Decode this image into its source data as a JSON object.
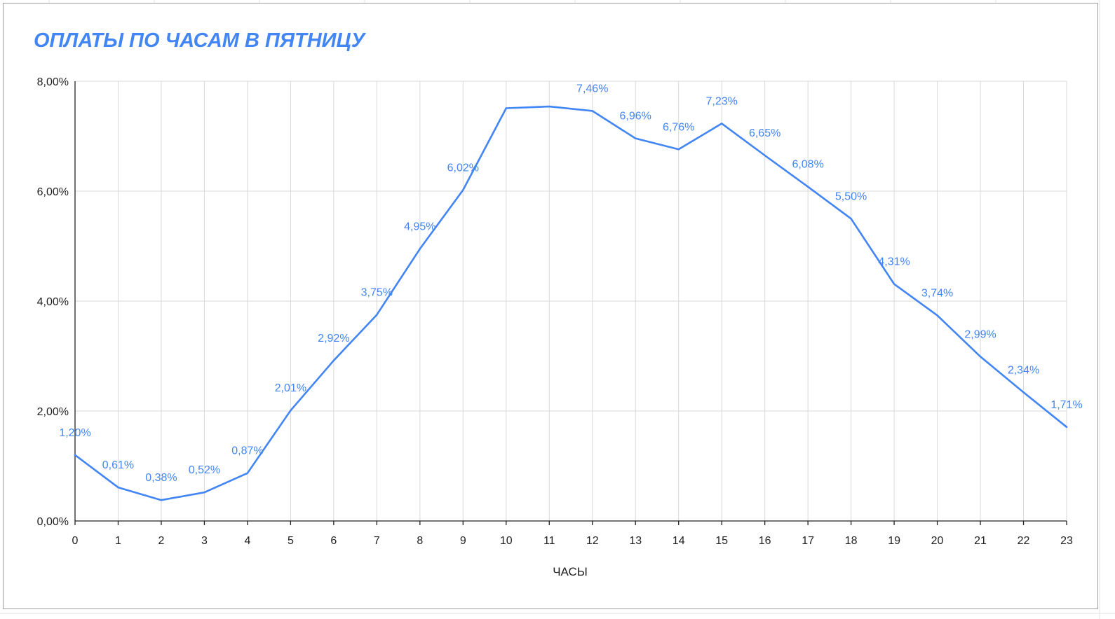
{
  "chart_data": {
    "type": "line",
    "title": "ОПЛАТЫ ПО ЧАСАМ В ПЯТНИЦУ",
    "xlabel": "ЧАСЫ",
    "ylabel": "",
    "categories": [
      "0",
      "1",
      "2",
      "3",
      "4",
      "5",
      "6",
      "7",
      "8",
      "9",
      "10",
      "11",
      "12",
      "13",
      "14",
      "15",
      "16",
      "17",
      "18",
      "19",
      "20",
      "21",
      "22",
      "23"
    ],
    "series": [
      {
        "values": [
          1.2,
          0.61,
          0.38,
          0.52,
          0.87,
          2.01,
          2.92,
          3.75,
          4.95,
          6.02,
          7.51,
          7.54,
          7.46,
          6.96,
          6.76,
          7.23,
          6.65,
          6.08,
          5.5,
          4.31,
          3.74,
          2.99,
          2.34,
          1.71
        ],
        "data_labels": [
          "1,20%",
          "0,61%",
          "0,38%",
          "0,52%",
          "0,87%",
          "2,01%",
          "2,92%",
          "3,75%",
          "4,95%",
          "6,02%",
          "",
          "",
          "7,46%",
          "6,96%",
          "6,76%",
          "7,23%",
          "6,65%",
          "6,08%",
          "5,50%",
          "4,31%",
          "3,74%",
          "2,99%",
          "2,34%",
          "1,71%"
        ]
      }
    ],
    "y_ticks": [
      "0,00%",
      "2,00%",
      "4,00%",
      "6,00%",
      "8,00%"
    ],
    "ylim": [
      0,
      8
    ],
    "grid": true,
    "legend": "none",
    "colors": {
      "line": "#4285f4",
      "grid": "#d9d9d9",
      "axis": "#222222",
      "title": "#4285f4"
    }
  }
}
